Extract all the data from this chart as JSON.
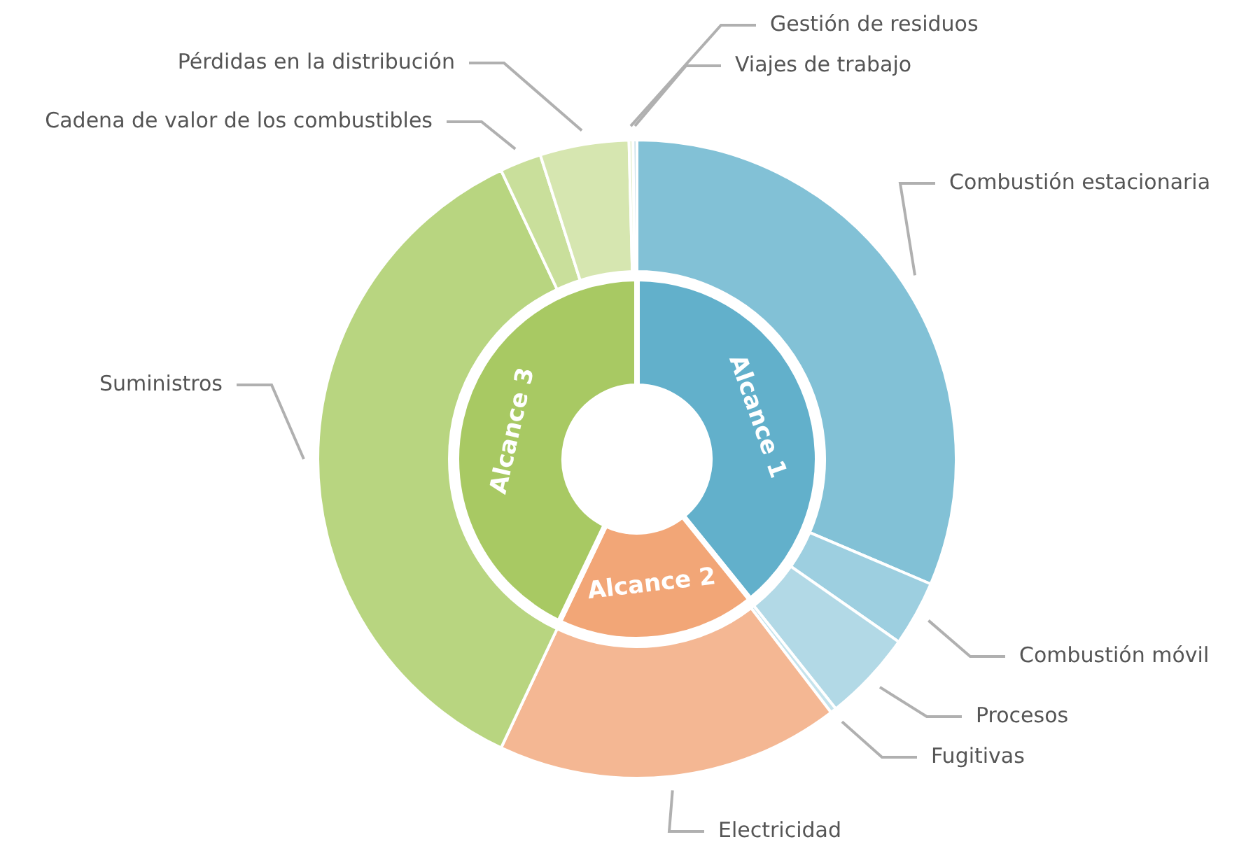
{
  "chart_data": [
    {
      "type": "donut",
      "categories": [
        "Combustión estacionaria",
        "Combustión móvil",
        "Procesos",
        "Fugitivas",
        "Electricidad",
        "Suministros",
        "Cadena de valor de los combustibles",
        "Pérdidas en la distribución",
        "Gestión de residuos",
        "Viajes de trabajo"
      ],
      "values": [
        31.4,
        3.3,
        4.6,
        0.3,
        17.4,
        36.0,
        2.1,
        4.5,
        0.2,
        0.2
      ],
      "colors": [
        "#82c1d6",
        "#9dcfe0",
        "#b2d9e6",
        "#c5e3ec",
        "#f4b793",
        "#b8d580",
        "#c9df9b",
        "#d6e6b0",
        "#e0edc6",
        "#c9e1ea"
      ]
    },
    {
      "type": "donut",
      "categories": [
        "Alcance 1",
        "Alcance 2",
        "Alcance 3"
      ],
      "values": [
        39.2,
        17.9,
        42.9
      ],
      "colors": [
        "#62b0cb",
        "#f2a677",
        "#a8c963"
      ]
    }
  ]
}
